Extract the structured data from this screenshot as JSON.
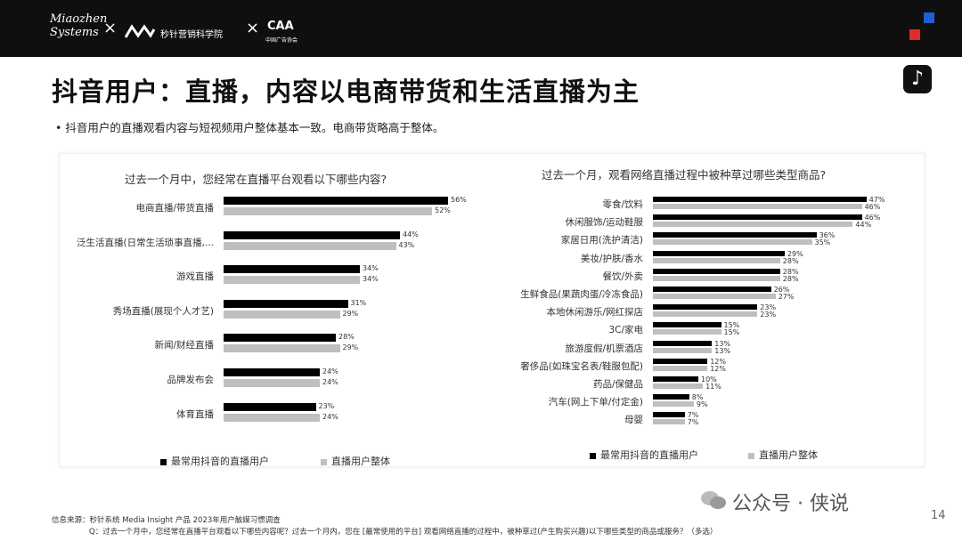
{
  "header": {
    "logo_line1": "Miaozhen",
    "logo_line2": "Systems",
    "partner_name": "秒针营销科学院",
    "partner3_mark": "CAA",
    "partner3_sub": "中国广告协会",
    "separator": "×",
    "colors": {
      "bar_bg": "#0f0f0f",
      "accent_blue": "#1f5fcf",
      "accent_red": "#e02b2b"
    }
  },
  "title": "抖音用户：直播，内容以电商带货和生活直播为主",
  "bullet": "•  抖音用户的直播观看内容与短视频用户整体基本一致。电商带货略高于整体。",
  "chart_data": [
    {
      "type": "bar",
      "orientation": "horizontal",
      "title": "过去一个月中，您经常在直播平台观看以下哪些内容?",
      "categories": [
        "电商直播/带货直播",
        "泛生活直播(日常生活琐事直播,...",
        "游戏直播",
        "秀场直播(展现个人才艺)",
        "新闻/财经直播",
        "品牌发布会",
        "体育直播"
      ],
      "series": [
        {
          "name": "最常用抖音的直播用户",
          "color": "#000000",
          "values": [
            56,
            44,
            34,
            31,
            28,
            24,
            23
          ]
        },
        {
          "name": "直播用户整体",
          "color": "#bfbfbf",
          "values": [
            52,
            43,
            34,
            29,
            29,
            24,
            24
          ]
        }
      ],
      "value_suffix": "%",
      "legend": "bottom"
    },
    {
      "type": "bar",
      "orientation": "horizontal",
      "title": "过去一个月，观看网络直播过程中被种草过哪些类型商品?",
      "categories": [
        "零食/饮料",
        "休闲服饰/运动鞋服",
        "家居日用(洗护清洁)",
        "美妆/护肤/香水",
        "餐饮/外卖",
        "生鲜食品(果蔬肉蛋/冷冻食品)",
        "本地休闲游乐/网红探店",
        "3C/家电",
        "旅游度假/机票酒店",
        "奢侈品(如珠宝名表/鞋服包配)",
        "药品/保健品",
        "汽车(网上下单/付定金)",
        "母婴"
      ],
      "series": [
        {
          "name": "最常用抖音的直播用户",
          "color": "#000000",
          "values": [
            47,
            46,
            36,
            29,
            28,
            26,
            23,
            15,
            13,
            12,
            10,
            8,
            7
          ]
        },
        {
          "name": "直播用户整体",
          "color": "#bfbfbf",
          "values": [
            46,
            44,
            35,
            28,
            28,
            27,
            23,
            15,
            13,
            12,
            11,
            9,
            7
          ]
        }
      ],
      "value_suffix": "%",
      "legend": "bottom"
    }
  ],
  "footer": {
    "source": "信息来源：秒针系统 Media Insight 产品 2023年用户触媒习惯调查",
    "question": "Q：过去一个月中，您经常在直播平台观看以下哪些内容呢？过去一个月内，您在 [最常使用的平台] 观看网络直播的过程中，被种草过(产生购买兴趣)以下哪些类型的商品或服务？（多选）"
  },
  "watermark": "公众号 · 侠说",
  "page_number": "14",
  "icons": {
    "tiktok": "tiktok-logo-icon",
    "wechat": "wechat-icon"
  }
}
